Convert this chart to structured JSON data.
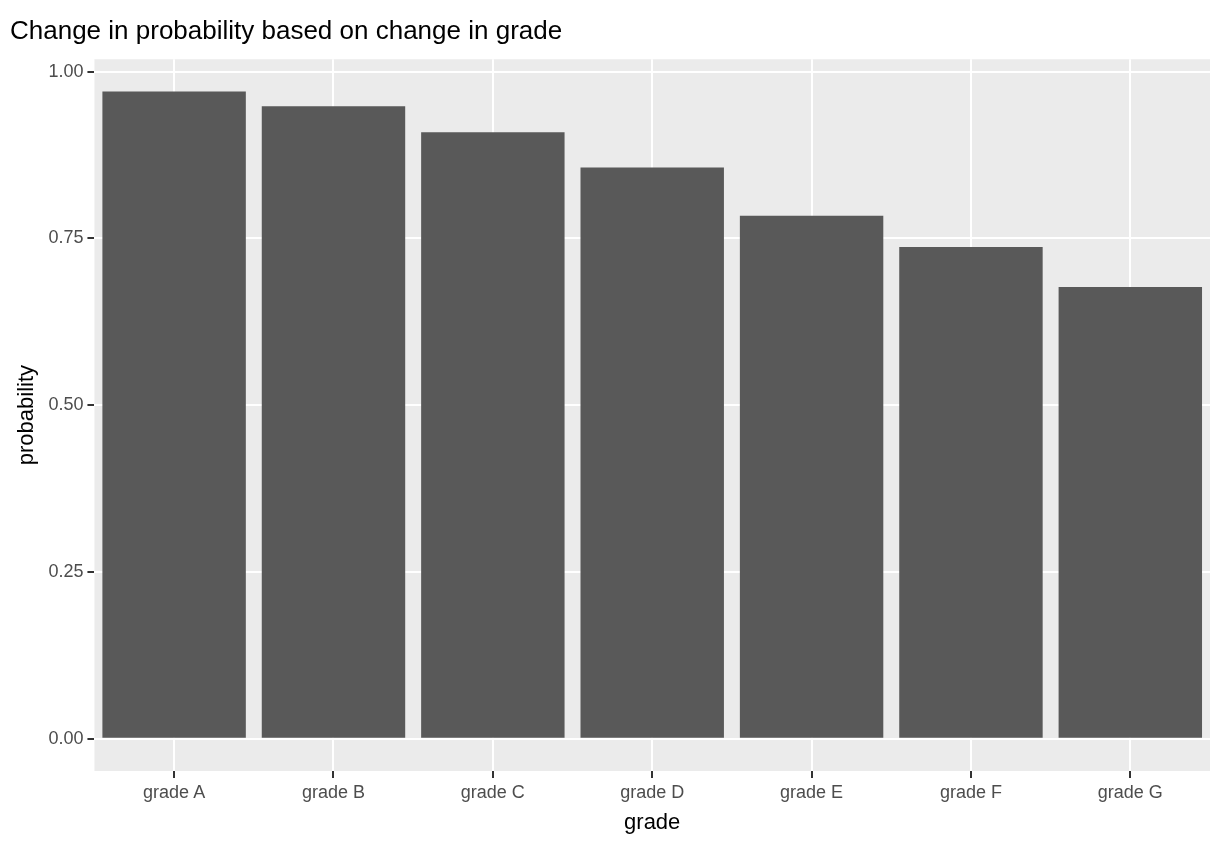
{
  "chart_data": {
    "type": "bar",
    "title": "Change in probability based on change in grade",
    "xlabel": "grade",
    "ylabel": "probability",
    "categories": [
      "grade A",
      "grade B",
      "grade C",
      "grade D",
      "grade E",
      "grade F",
      "grade G"
    ],
    "values": [
      0.97,
      0.948,
      0.909,
      0.856,
      0.784,
      0.737,
      0.677
    ],
    "color": "#595959",
    "ylim": [
      -0.0485,
      1.0185
    ],
    "yticks": [
      {
        "value": 0,
        "label": "0.00"
      },
      {
        "value": 0.25,
        "label": "0.25"
      },
      {
        "value": 0.5,
        "label": "0.50"
      },
      {
        "value": 0.75,
        "label": "0.75"
      },
      {
        "value": 1,
        "label": "1.00"
      }
    ],
    "grid": true,
    "legend": false
  }
}
